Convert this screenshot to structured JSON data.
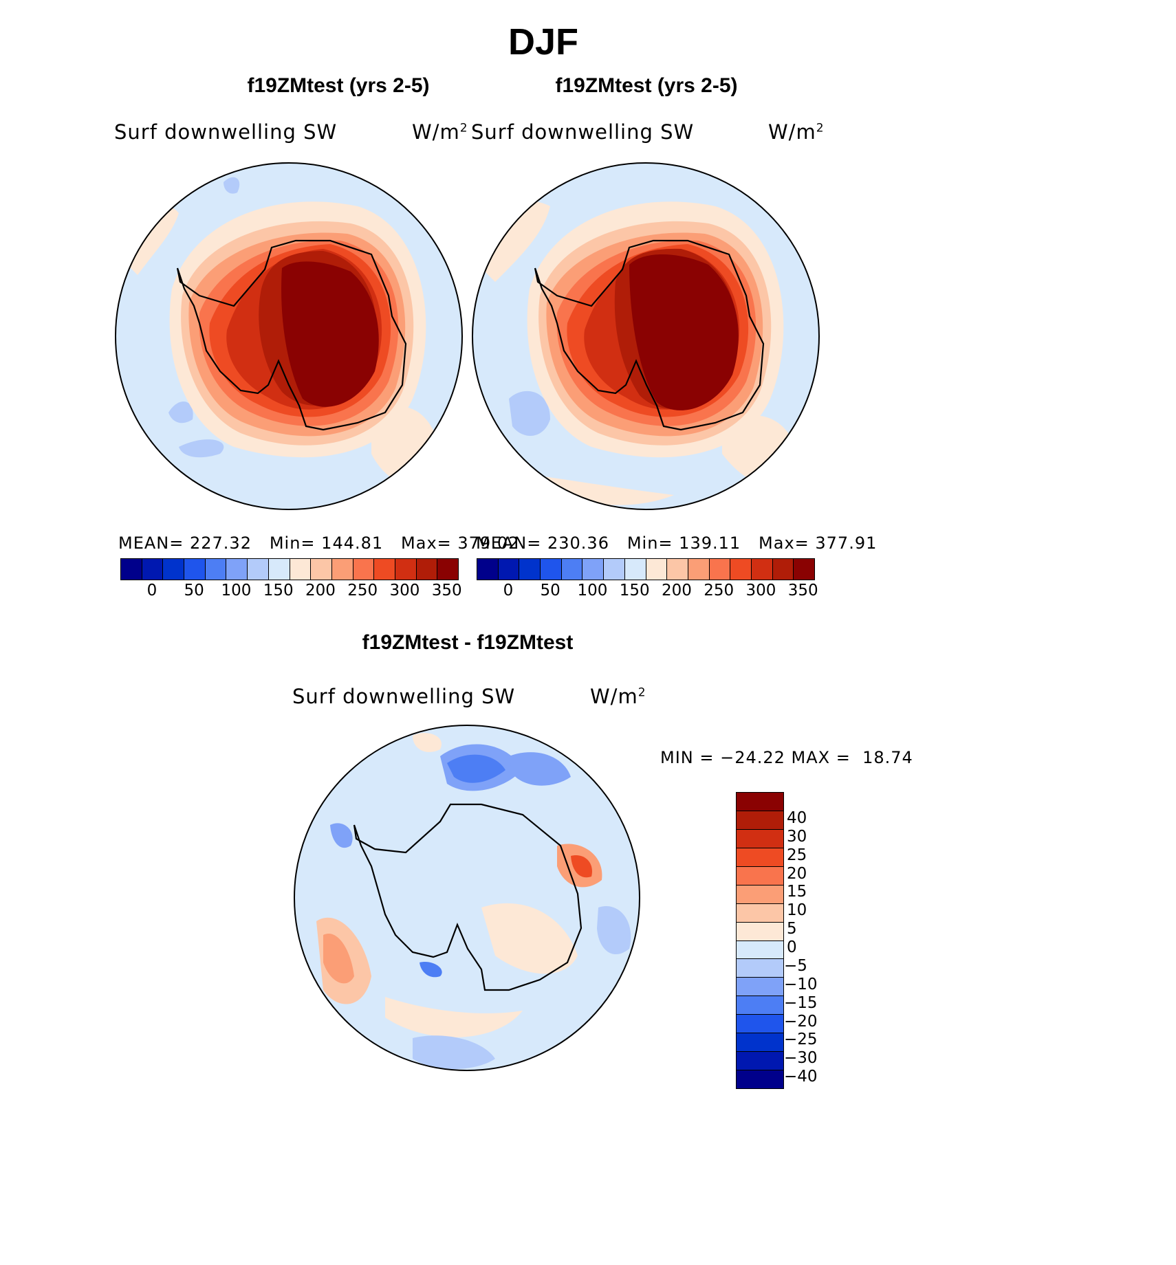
{
  "title": "DJF",
  "panels": [
    {
      "title": "f19ZMtest (yrs 2-5)",
      "variable": "Surf downwelling SW",
      "units": "W/m",
      "units_sup": "2",
      "stats": "MEAN= 227.32   Min= 144.81   Max= 379.02"
    },
    {
      "title": "f19ZMtest (yrs 2-5)",
      "variable": "Surf downwelling SW",
      "units": "W/m",
      "units_sup": "2",
      "stats": "MEAN= 230.36   Min= 139.11   Max= 377.91"
    }
  ],
  "diff_panel": {
    "title": "f19ZMtest - f19ZMtest",
    "variable": "Surf downwelling SW",
    "units": "W/m",
    "units_sup": "2",
    "stats": "MIN = −24.22 MAX =  18.74"
  },
  "colorbar_abs": {
    "colors": [
      "#00008b",
      "#0018b0",
      "#0033cc",
      "#1f55ec",
      "#4d7ef4",
      "#7fa2f8",
      "#b3cbfa",
      "#d7e9fb",
      "#fde8d6",
      "#fcc6a7",
      "#fb9e76",
      "#f9744d",
      "#ee4b23",
      "#d12f12",
      "#b01d08",
      "#8a0202"
    ],
    "ticks": [
      "0",
      "50",
      "100",
      "150",
      "200",
      "250",
      "300",
      "350"
    ]
  },
  "colorbar_diff": {
    "colors": [
      "#8a0202",
      "#b01d08",
      "#d12f12",
      "#ee4b23",
      "#f9744d",
      "#fb9e76",
      "#fcc6a7",
      "#fde8d6",
      "#d7e9fb",
      "#b3cbfa",
      "#7fa2f8",
      "#4d7ef4",
      "#1f55ec",
      "#0033cc",
      "#0018b0",
      "#00008b"
    ],
    "ticks": [
      "40",
      "30",
      "25",
      "20",
      "15",
      "10",
      "5",
      "0",
      "−5",
      "−10",
      "−15",
      "−20",
      "−25",
      "−30",
      "−40"
    ]
  }
}
